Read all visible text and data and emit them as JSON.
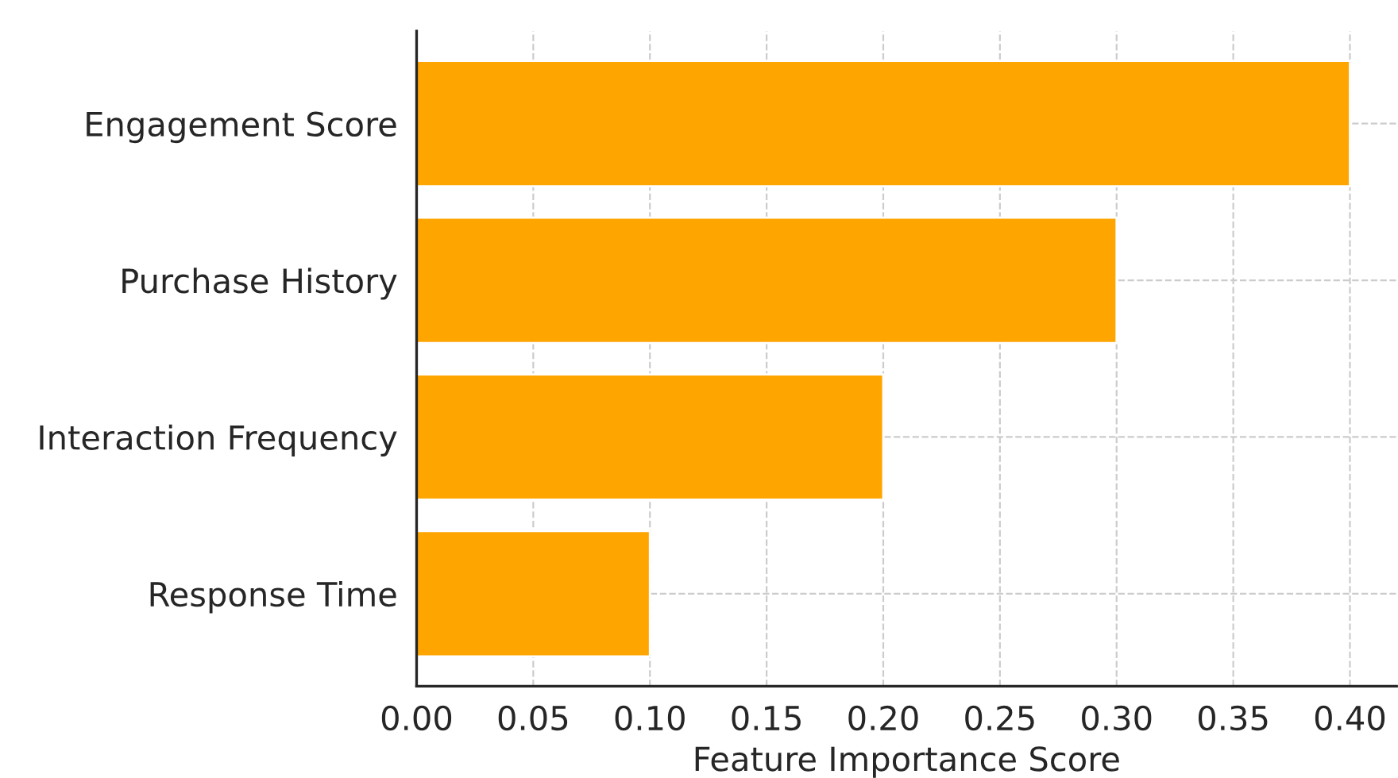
{
  "chart_data": {
    "type": "bar",
    "orientation": "horizontal",
    "categories": [
      "Engagement Score",
      "Purchase History",
      "Interaction Frequency",
      "Response Time"
    ],
    "values": [
      0.4,
      0.3,
      0.2,
      0.1
    ],
    "color": "#ffa500",
    "xlabel": "Feature Importance Score",
    "xlim": [
      0,
      0.42
    ],
    "xticks": [
      {
        "value": 0,
        "label": "0.00"
      },
      {
        "value": 0.05,
        "label": "0.05"
      },
      {
        "value": 0.1,
        "label": "0.10"
      },
      {
        "value": 0.15,
        "label": "0.15"
      },
      {
        "value": 0.2,
        "label": "0.20"
      },
      {
        "value": 0.25,
        "label": "0.25"
      },
      {
        "value": 0.3,
        "label": "0.30"
      },
      {
        "value": 0.35,
        "label": "0.35"
      },
      {
        "value": 0.4,
        "label": "0.40"
      }
    ],
    "grid": true
  }
}
